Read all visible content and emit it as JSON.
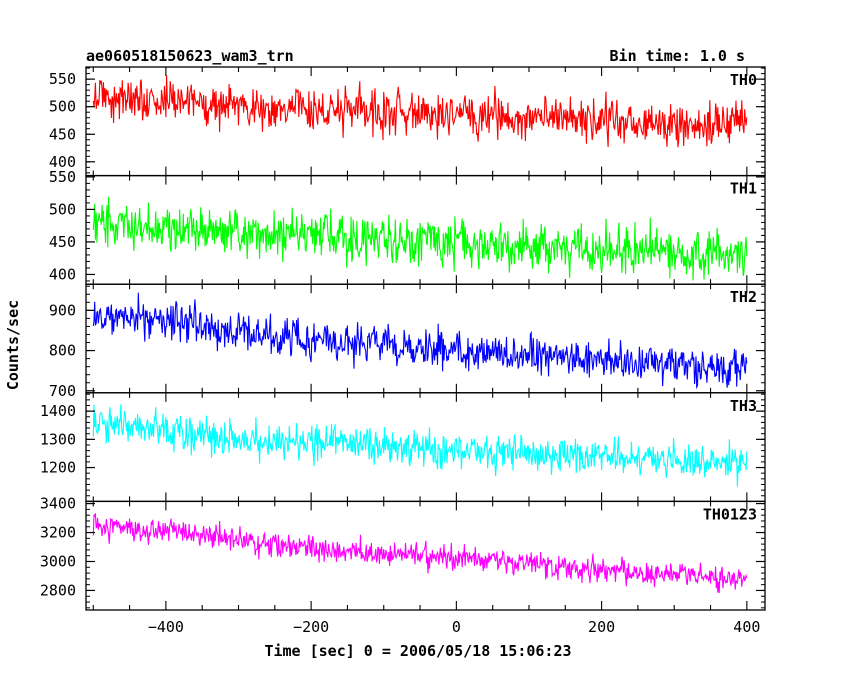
{
  "chart_data": {
    "type": "line",
    "title": "ae060518150623_wam3_trn",
    "subtitle": "Bin time: 1.0 s",
    "xlabel": "Time [sec] 0 = 2006/05/18 15:06:23",
    "ylabel": "Counts/sec",
    "xlim": [
      -510,
      425
    ],
    "xticks": [
      -400,
      -200,
      0,
      200,
      400
    ],
    "xtick_labels": [
      "−400",
      "−200",
      "0",
      "200",
      "400"
    ],
    "grid": false,
    "panels": [
      {
        "name": "TH0",
        "color": "#ff0000",
        "ylim": [
          375,
          572
        ],
        "yticks": [
          400,
          450,
          500,
          550
        ],
        "ytick_labels": [
          "400",
          "450",
          "500",
          "550"
        ],
        "x": [
          -500,
          -450,
          -400,
          -350,
          -300,
          -250,
          -200,
          -150,
          -100,
          -50,
          0,
          50,
          100,
          150,
          200,
          250,
          300,
          350,
          400
        ],
        "y": [
          520,
          513,
          510,
          506,
          502,
          498,
          495,
          492,
          489,
          486,
          484,
          482,
          479,
          477,
          474,
          472,
          469,
          467,
          465
        ],
        "spread": 28
      },
      {
        "name": "TH1",
        "color": "#00ff00",
        "ylim": [
          385,
          552
        ],
        "yticks": [
          400,
          450,
          500,
          550
        ],
        "ytick_labels": [
          "400",
          "450",
          "500",
          "550"
        ],
        "x": [
          -500,
          -450,
          -400,
          -350,
          -300,
          -250,
          -200,
          -150,
          -100,
          -50,
          0,
          50,
          100,
          150,
          200,
          250,
          300,
          350,
          400
        ],
        "y": [
          482,
          477,
          472,
          468,
          464,
          460,
          457,
          454,
          451,
          449,
          447,
          445,
          443,
          441,
          439,
          437,
          435,
          433,
          432
        ],
        "spread": 25
      },
      {
        "name": "TH2",
        "color": "#0000ff",
        "ylim": [
          695,
          965
        ],
        "yticks": [
          700,
          800,
          900
        ],
        "ytick_labels": [
          "700",
          "800",
          "900"
        ],
        "x": [
          -500,
          -450,
          -400,
          -350,
          -300,
          -250,
          -200,
          -150,
          -100,
          -50,
          0,
          50,
          100,
          150,
          200,
          250,
          300,
          350,
          400
        ],
        "y": [
          885,
          880,
          874,
          860,
          846,
          836,
          828,
          820,
          813,
          806,
          800,
          794,
          788,
          781,
          776,
          770,
          765,
          760,
          757
        ],
        "spread": 33
      },
      {
        "name": "TH3",
        "color": "#00ffff",
        "ylim": [
          1080,
          1465
        ],
        "yticks": [
          1200,
          1300,
          1400
        ],
        "ytick_labels": [
          "1200",
          "1300",
          "1400"
        ],
        "x": [
          -500,
          -450,
          -400,
          -350,
          -300,
          -250,
          -200,
          -150,
          -100,
          -50,
          0,
          50,
          100,
          150,
          200,
          250,
          300,
          350,
          400
        ],
        "y": [
          1348,
          1340,
          1330,
          1318,
          1306,
          1296,
          1288,
          1280,
          1273,
          1267,
          1262,
          1256,
          1250,
          1244,
          1238,
          1233,
          1228,
          1224,
          1220
        ],
        "spread": 45
      },
      {
        "name": "TH0123",
        "color": "#ff00ff",
        "ylim": [
          2665,
          3415
        ],
        "yticks": [
          2800,
          3000,
          3200,
          3400
        ],
        "ytick_labels": [
          "2800",
          "3000",
          "3200",
          "3400"
        ],
        "x": [
          -500,
          -450,
          -400,
          -350,
          -300,
          -250,
          -200,
          -150,
          -100,
          -50,
          0,
          50,
          100,
          150,
          200,
          250,
          300,
          350,
          400
        ],
        "y": [
          3245,
          3225,
          3200,
          3180,
          3150,
          3120,
          3095,
          3070,
          3055,
          3040,
          3025,
          3005,
          2985,
          2960,
          2940,
          2920,
          2905,
          2890,
          2880
        ],
        "spread": 60
      }
    ]
  }
}
